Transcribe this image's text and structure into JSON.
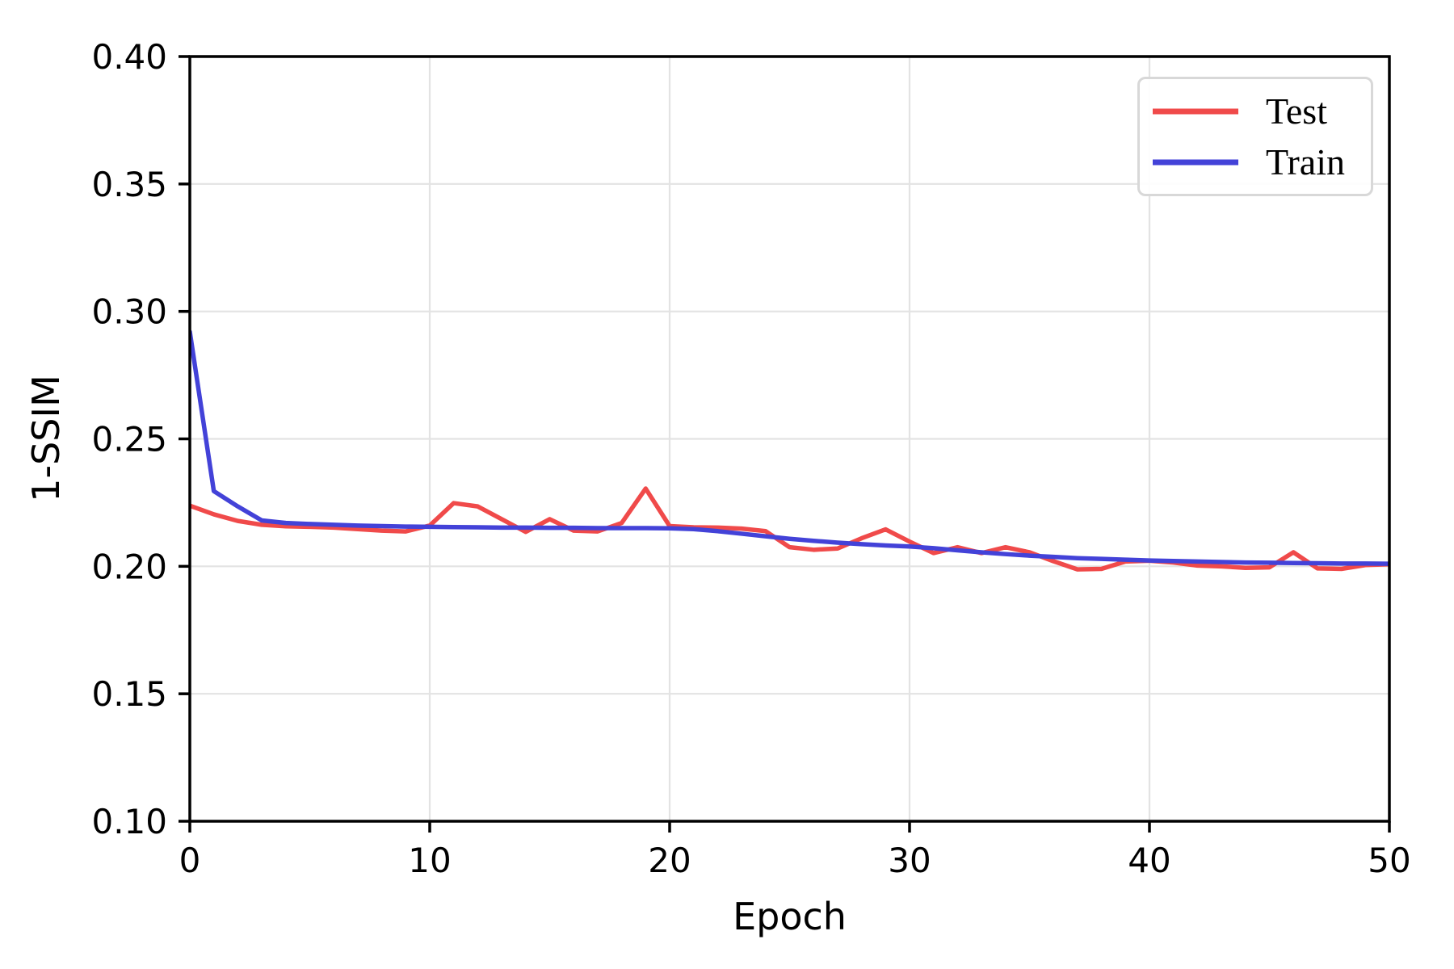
{
  "chart_data": {
    "type": "line",
    "title": "",
    "xlabel": "Epoch",
    "ylabel": "1-SSIM",
    "xlim": [
      0,
      50
    ],
    "ylim": [
      0.1,
      0.4
    ],
    "xticks": [
      0,
      10,
      20,
      30,
      40,
      50
    ],
    "yticks": [
      0.1,
      0.15,
      0.2,
      0.25,
      0.3,
      0.35,
      0.4
    ],
    "grid": true,
    "legend_position": "upper-right",
    "x": [
      0,
      1,
      2,
      3,
      4,
      5,
      6,
      7,
      8,
      9,
      10,
      11,
      12,
      13,
      14,
      15,
      16,
      17,
      18,
      19,
      20,
      21,
      22,
      23,
      24,
      25,
      26,
      27,
      28,
      29,
      30,
      31,
      32,
      33,
      34,
      35,
      36,
      37,
      38,
      39,
      40,
      41,
      42,
      43,
      44,
      45,
      46,
      47,
      48,
      49,
      50
    ],
    "series": [
      {
        "name": "Test",
        "color": "#f04a4a",
        "values": [
          0.2238,
          0.2204,
          0.2178,
          0.2163,
          0.2157,
          0.2155,
          0.2152,
          0.2146,
          0.214,
          0.2137,
          0.216,
          0.2248,
          0.2235,
          0.2185,
          0.2135,
          0.2185,
          0.214,
          0.2137,
          0.217,
          0.2305,
          0.2158,
          0.2153,
          0.2152,
          0.2148,
          0.2138,
          0.2075,
          0.2065,
          0.207,
          0.211,
          0.2145,
          0.2097,
          0.2052,
          0.2075,
          0.2052,
          0.2075,
          0.2055,
          0.202,
          0.1988,
          0.199,
          0.2019,
          0.2022,
          0.2015,
          0.2003,
          0.2,
          0.1994,
          0.1996,
          0.2055,
          0.1992,
          0.199,
          0.2005,
          0.2008
        ]
      },
      {
        "name": "Train",
        "color": "#4342d8",
        "values": [
          0.292,
          0.2295,
          0.2235,
          0.218,
          0.217,
          0.2166,
          0.2163,
          0.216,
          0.2158,
          0.2156,
          0.2155,
          0.2154,
          0.2153,
          0.2152,
          0.2152,
          0.2151,
          0.2151,
          0.215,
          0.215,
          0.215,
          0.2149,
          0.2146,
          0.2138,
          0.2128,
          0.2118,
          0.2108,
          0.21,
          0.2093,
          0.2087,
          0.2082,
          0.2078,
          0.2071,
          0.2063,
          0.2055,
          0.2048,
          0.2042,
          0.2037,
          0.2032,
          0.2029,
          0.2026,
          0.2023,
          0.2021,
          0.2019,
          0.2017,
          0.2015,
          0.2014,
          0.2013,
          0.2012,
          0.2011,
          0.2011,
          0.201
        ]
      }
    ],
    "colors": {
      "grid": "#e3e3e3",
      "spine": "#000000",
      "background": "#ffffff"
    }
  }
}
